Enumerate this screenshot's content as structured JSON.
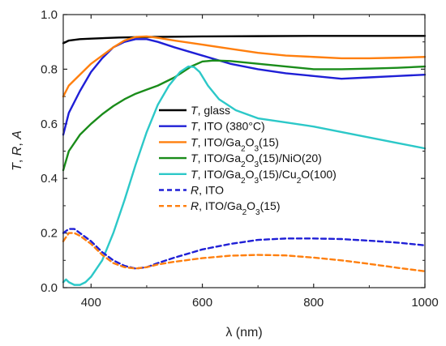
{
  "chart_data": {
    "type": "line",
    "xlabel": "λ (nm)",
    "ylabel_parts": [
      {
        "text": "T",
        "italic": true
      },
      {
        "text": ", ",
        "italic": false
      },
      {
        "text": "R",
        "italic": true
      },
      {
        "text": ", ",
        "italic": false
      },
      {
        "text": "A",
        "italic": true
      }
    ],
    "xlim": [
      350,
      1000
    ],
    "ylim": [
      0.0,
      1.0
    ],
    "xticks": [
      400,
      600,
      800,
      1000
    ],
    "yticks": [
      0.0,
      0.2,
      0.4,
      0.6,
      0.8,
      1.0
    ],
    "ytick_labels": [
      "0.0",
      "0.2",
      "0.4",
      "0.6",
      "0.8",
      "1.0"
    ],
    "xtick_labels": [
      "400",
      "600",
      "800",
      "1000"
    ],
    "grid": false,
    "legend_position": "center-right",
    "series": [
      {
        "name_parts": [
          {
            "text": "T",
            "italic": true
          },
          {
            "text": ", glass"
          }
        ],
        "color": "#000000",
        "dash": "solid",
        "x": [
          350,
          360,
          380,
          400,
          450,
          500,
          550,
          600,
          700,
          800,
          900,
          1000
        ],
        "y": [
          0.895,
          0.905,
          0.91,
          0.912,
          0.916,
          0.918,
          0.919,
          0.92,
          0.921,
          0.922,
          0.922,
          0.922
        ]
      },
      {
        "name_parts": [
          {
            "text": "T",
            "italic": true
          },
          {
            "text": ", ITO (380°C)"
          }
        ],
        "color": "#1f1fd6",
        "dash": "solid",
        "x": [
          350,
          360,
          380,
          400,
          420,
          440,
          460,
          480,
          500,
          520,
          550,
          600,
          650,
          700,
          750,
          800,
          850,
          900,
          950,
          1000
        ],
        "y": [
          0.56,
          0.64,
          0.72,
          0.79,
          0.84,
          0.88,
          0.9,
          0.91,
          0.91,
          0.9,
          0.88,
          0.85,
          0.82,
          0.8,
          0.785,
          0.775,
          0.765,
          0.77,
          0.775,
          0.78
        ]
      },
      {
        "name_parts": [
          {
            "text": "T",
            "italic": true
          },
          {
            "text": ", ITO/Ga"
          },
          {
            "text": "2",
            "sub": true
          },
          {
            "text": "O"
          },
          {
            "text": "3",
            "sub": true
          },
          {
            "text": "(15)"
          }
        ],
        "color": "#ff7f0e",
        "dash": "solid",
        "x": [
          350,
          360,
          380,
          400,
          420,
          440,
          460,
          480,
          500,
          520,
          550,
          600,
          650,
          700,
          750,
          800,
          850,
          900,
          950,
          1000
        ],
        "y": [
          0.7,
          0.74,
          0.78,
          0.82,
          0.85,
          0.88,
          0.905,
          0.918,
          0.92,
          0.915,
          0.905,
          0.89,
          0.875,
          0.86,
          0.85,
          0.845,
          0.84,
          0.84,
          0.842,
          0.845
        ]
      },
      {
        "name_parts": [
          {
            "text": "T",
            "italic": true
          },
          {
            "text": ", ITO/Ga"
          },
          {
            "text": "2",
            "sub": true
          },
          {
            "text": "O"
          },
          {
            "text": "3",
            "sub": true
          },
          {
            "text": "(15)/NiO(20)"
          }
        ],
        "color": "#1a8c1a",
        "dash": "solid",
        "x": [
          350,
          360,
          380,
          400,
          420,
          440,
          460,
          480,
          500,
          520,
          550,
          580,
          600,
          620,
          650,
          700,
          750,
          800,
          850,
          900,
          950,
          1000
        ],
        "y": [
          0.43,
          0.5,
          0.56,
          0.6,
          0.635,
          0.665,
          0.69,
          0.71,
          0.725,
          0.74,
          0.77,
          0.81,
          0.828,
          0.832,
          0.83,
          0.82,
          0.81,
          0.8,
          0.8,
          0.802,
          0.805,
          0.81
        ]
      },
      {
        "name_parts": [
          {
            "text": "T",
            "italic": true
          },
          {
            "text": ", ITO/Ga"
          },
          {
            "text": "2",
            "sub": true
          },
          {
            "text": "O"
          },
          {
            "text": "3",
            "sub": true
          },
          {
            "text": "(15)/Cu"
          },
          {
            "text": "2",
            "sub": true
          },
          {
            "text": "O(100)"
          }
        ],
        "color": "#2cc8c8",
        "dash": "solid",
        "x": [
          350,
          355,
          360,
          370,
          380,
          390,
          400,
          420,
          440,
          460,
          480,
          500,
          520,
          540,
          560,
          575,
          585,
          595,
          610,
          630,
          660,
          700,
          750,
          800,
          850,
          900,
          950,
          1000
        ],
        "y": [
          0.02,
          0.03,
          0.02,
          0.01,
          0.01,
          0.02,
          0.04,
          0.1,
          0.2,
          0.32,
          0.45,
          0.57,
          0.67,
          0.74,
          0.79,
          0.81,
          0.808,
          0.79,
          0.74,
          0.69,
          0.65,
          0.62,
          0.605,
          0.59,
          0.57,
          0.55,
          0.53,
          0.51
        ]
      },
      {
        "name_parts": [
          {
            "text": "R",
            "italic": true
          },
          {
            "text": ", ITO"
          }
        ],
        "color": "#1f1fd6",
        "dash": "dashed",
        "x": [
          350,
          360,
          370,
          380,
          400,
          420,
          440,
          460,
          480,
          500,
          520,
          550,
          600,
          650,
          700,
          750,
          800,
          850,
          900,
          950,
          1000
        ],
        "y": [
          0.2,
          0.215,
          0.215,
          0.2,
          0.17,
          0.13,
          0.1,
          0.08,
          0.07,
          0.075,
          0.09,
          0.11,
          0.14,
          0.16,
          0.175,
          0.18,
          0.18,
          0.178,
          0.172,
          0.165,
          0.155
        ]
      },
      {
        "name_parts": [
          {
            "text": "R",
            "italic": true
          },
          {
            "text": ", ITO/Ga"
          },
          {
            "text": "2",
            "sub": true
          },
          {
            "text": "O"
          },
          {
            "text": "3",
            "sub": true
          },
          {
            "text": "(15)"
          }
        ],
        "color": "#ff7f0e",
        "dash": "dashed",
        "x": [
          350,
          360,
          370,
          380,
          400,
          420,
          440,
          460,
          480,
          500,
          520,
          550,
          600,
          650,
          700,
          750,
          800,
          850,
          900,
          950,
          1000
        ],
        "y": [
          0.17,
          0.2,
          0.2,
          0.19,
          0.16,
          0.12,
          0.09,
          0.075,
          0.07,
          0.075,
          0.085,
          0.095,
          0.108,
          0.117,
          0.12,
          0.118,
          0.11,
          0.1,
          0.087,
          0.073,
          0.06
        ]
      }
    ]
  }
}
